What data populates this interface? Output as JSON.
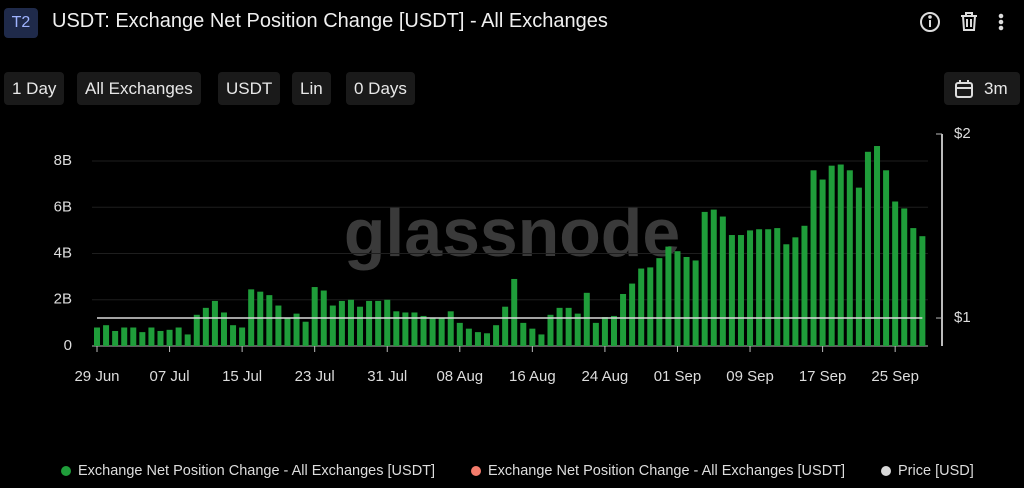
{
  "header": {
    "badge": "T2"
  },
  "toolbar": [
    "1 Day",
    "All Exchanges",
    "USDT",
    "Lin",
    "0 Days"
  ],
  "range": "3m",
  "watermark": "glassnode",
  "chart_data": {
    "type": "bar",
    "title": "USDT: Exchange Net Position Change [USDT] - All Exchanges",
    "categories": [
      "29 Jun",
      null,
      null,
      null,
      null,
      null,
      null,
      null,
      "07 Jul",
      null,
      null,
      null,
      null,
      null,
      null,
      null,
      "15 Jul",
      null,
      null,
      null,
      null,
      null,
      null,
      null,
      "23 Jul",
      null,
      null,
      null,
      null,
      null,
      null,
      null,
      "31 Jul",
      null,
      null,
      null,
      null,
      null,
      null,
      null,
      "08 Aug",
      null,
      null,
      null,
      null,
      null,
      null,
      null,
      "16 Aug",
      null,
      null,
      null,
      null,
      null,
      null,
      null,
      "24 Aug",
      null,
      null,
      null,
      null,
      null,
      null,
      null,
      "01 Sep",
      null,
      null,
      null,
      null,
      null,
      null,
      null,
      "09 Sep",
      null,
      null,
      null,
      null,
      null,
      null,
      null,
      "17 Sep",
      null,
      null,
      null,
      null,
      null,
      null,
      null,
      "25 Sep",
      null,
      null,
      null
    ],
    "series": [
      {
        "name": "Exchange Net Position Change - All Exchanges [USDT]",
        "color": "#1f9d3a",
        "values": [
          800000000.0,
          900000000.0,
          650000000.0,
          800000000.0,
          800000000.0,
          600000000.0,
          800000000.0,
          650000000.0,
          700000000.0,
          800000000.0,
          500000000.0,
          1350000000.0,
          1650000000.0,
          1950000000.0,
          1450000000.0,
          900000000.0,
          800000000.0,
          2450000000.0,
          2350000000.0,
          2200000000.0,
          1750000000.0,
          1200000000.0,
          1400000000.0,
          1050000000.0,
          2550000000.0,
          2400000000.0,
          1750000000.0,
          1950000000.0,
          2000000000.0,
          1700000000.0,
          1950000000.0,
          1950000000.0,
          2000000000.0,
          1500000000.0,
          1450000000.0,
          1450000000.0,
          1300000000.0,
          1200000000.0,
          1200000000.0,
          1500000000.0,
          1000000000.0,
          750000000.0,
          600000000.0,
          550000000.0,
          900000000.0,
          1700000000.0,
          2900000000.0,
          1000000000.0,
          750000000.0,
          500000000.0,
          1350000000.0,
          1650000000.0,
          1650000000.0,
          1400000000.0,
          2300000000.0,
          1000000000.0,
          1250000000.0,
          1300000000.0,
          2250000000.0,
          2700000000.0,
          3350000000.0,
          3400000000.0,
          3800000000.0,
          4300000000.0,
          4100000000.0,
          3850000000.0,
          3700000000.0,
          5800000000.0,
          5900000000.0,
          5600000000.0,
          4800000000.0,
          4800000000.0,
          5000000000.0,
          5050000000.0,
          5050000000.0,
          5100000000.0,
          4400000000.0,
          4700000000.0,
          5200000000.0,
          7600000000.0,
          7200000000.0,
          7800000000.0,
          7850000000.0,
          7600000000.0,
          6850000000.0,
          8400000000.0,
          8650000000.0,
          7600000000.0,
          6250000000.0,
          5950000000.0,
          5100000000.0,
          4750000000.0
        ]
      },
      {
        "name": "Exchange Net Position Change - All Exchanges [USDT]",
        "color": "#f47c6c"
      },
      {
        "name": "Price [USD]",
        "color": "#d9d9d9",
        "axis": "y2",
        "type": "line",
        "values": [
          1,
          1,
          1,
          1,
          1,
          1,
          1,
          1,
          1,
          1,
          1,
          1,
          1,
          1,
          1,
          1,
          1,
          1,
          1,
          1,
          1,
          1,
          1,
          1,
          1,
          1,
          1,
          1,
          1,
          1,
          1,
          1,
          1,
          1,
          1,
          1,
          1,
          1,
          1,
          1,
          1,
          1,
          1,
          1,
          1,
          1,
          1,
          1,
          1,
          1,
          1,
          1,
          1,
          1,
          1,
          1,
          1,
          1,
          1,
          1,
          1,
          1,
          1,
          1,
          1,
          1,
          1,
          1,
          1,
          1,
          1,
          1,
          1,
          1,
          1,
          1,
          1,
          1,
          1,
          1,
          1,
          1,
          1,
          1,
          1,
          1,
          1,
          1,
          1,
          1,
          1,
          1
        ]
      }
    ],
    "ylim": [
      0,
      9170000000.0
    ],
    "yticks": [
      0,
      {
        "value": 2000000000.0,
        "label": "2B"
      },
      {
        "value": 4000000000.0,
        "label": "4B"
      },
      {
        "value": 6000000000.0,
        "label": "6B"
      },
      {
        "value": 8000000000.0,
        "label": "8B"
      }
    ],
    "y2lim": [
      0.848,
      2
    ],
    "y2ticks": [
      {
        "value": 1,
        "label": "$1"
      },
      {
        "value": 2,
        "label": "$2"
      }
    ],
    "grid": true
  }
}
